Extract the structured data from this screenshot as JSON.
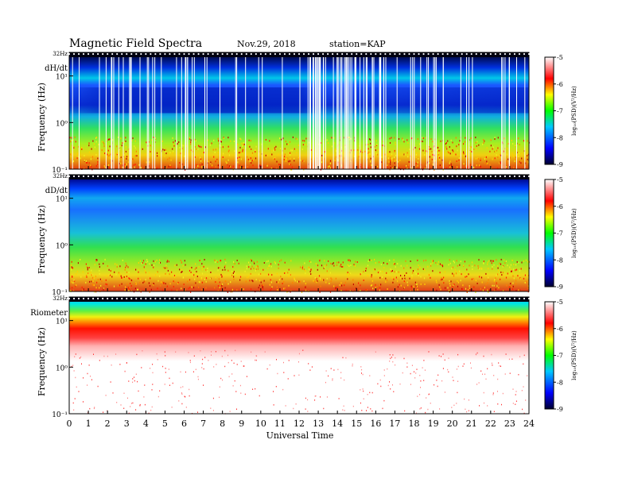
{
  "header": {
    "title": "Magnetic  Field  Spectra",
    "date": "Nov.29, 2018",
    "station": "station=KAP"
  },
  "chart_data": [
    {
      "type": "heatmap",
      "panel_label": "dH/dt",
      "ylabel": "Frequency (Hz)",
      "y_scale": "log",
      "ylim": [
        0.1,
        32
      ],
      "y_ticks": [
        "32Hz",
        "10¹",
        "10⁰",
        "10⁻¹"
      ],
      "x_range": [
        0,
        24
      ],
      "colorbar": {
        "label": "log₁₀(PSD)(V²/Hz)",
        "range": [
          -9,
          -5
        ],
        "ticks": [
          "-5",
          "-6",
          "-7",
          "-8",
          "-9"
        ],
        "colormap": [
          "#000030",
          "#0000ff",
          "#00ffff",
          "#00ff00",
          "#ffff00",
          "#ff0000",
          "#ffffff"
        ]
      }
    },
    {
      "type": "heatmap",
      "panel_label": "dD/dt",
      "ylabel": "Frequency (Hz)",
      "y_scale": "log",
      "ylim": [
        0.1,
        32
      ],
      "y_ticks": [
        "32Hz",
        "10¹",
        "10⁰",
        "10⁻¹"
      ],
      "x_range": [
        0,
        24
      ],
      "colorbar": {
        "label": "log₁₀(PSD)(V²/Hz)",
        "range": [
          -9,
          -5
        ],
        "ticks": [
          "-5",
          "-6",
          "-7",
          "-8",
          "-9"
        ]
      }
    },
    {
      "type": "heatmap",
      "panel_label": "Riometer",
      "ylabel": "Frequency (Hz)",
      "y_scale": "log",
      "ylim": [
        0.1,
        32
      ],
      "y_ticks": [
        "32Hz",
        "10¹",
        "10⁰",
        "10⁻¹"
      ],
      "x_range": [
        0,
        24
      ],
      "colorbar": {
        "label": "log₁₀(PSD)(V²/Hz)",
        "range": [
          -9,
          -5
        ],
        "ticks": [
          "-5",
          "-6",
          "-7",
          "-8",
          "-9"
        ]
      }
    }
  ],
  "x_axis": {
    "label": "Universal Time",
    "ticks": [
      "0",
      "1",
      "2",
      "3",
      "4",
      "5",
      "6",
      "7",
      "8",
      "9",
      "10",
      "11",
      "12",
      "13",
      "14",
      "15",
      "16",
      "17",
      "18",
      "19",
      "20",
      "21",
      "22",
      "23",
      "24"
    ]
  }
}
